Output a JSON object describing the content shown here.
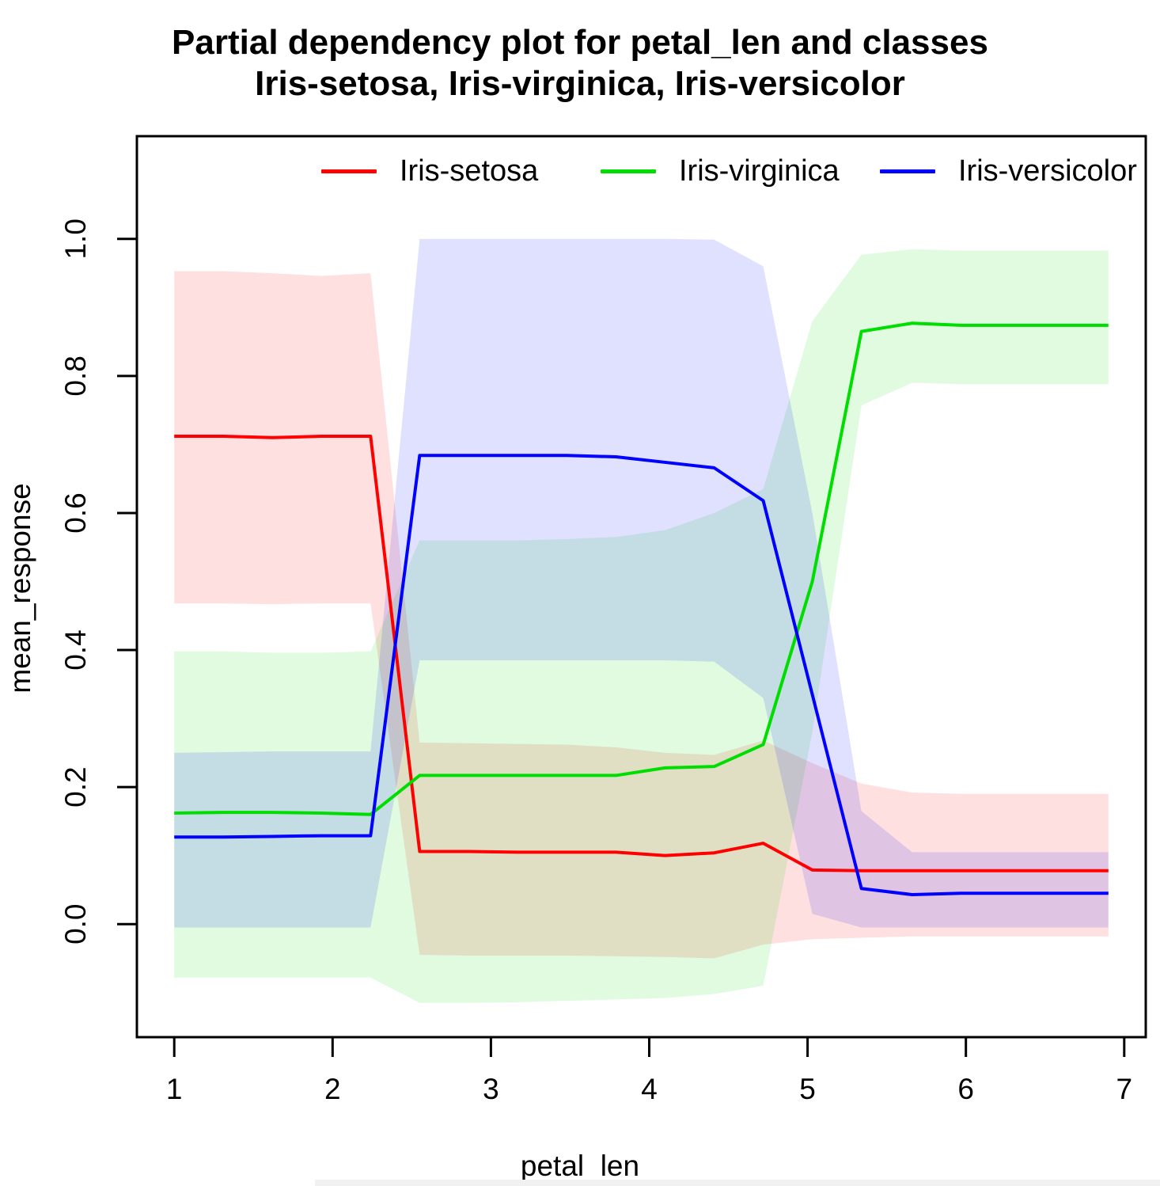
{
  "title": {
    "line1": "Partial dependency plot for petal_len and classes",
    "line2": "Iris-setosa, Iris-virginica, Iris-versicolor"
  },
  "axes": {
    "x_label": "petal_len",
    "y_label": "mean_response",
    "x_tick_labels": [
      "1",
      "2",
      "3",
      "4",
      "5",
      "6",
      "7"
    ],
    "x_tick_values": [
      1,
      2,
      3,
      4,
      5,
      6,
      7
    ],
    "y_tick_labels": [
      "0.0",
      "0.2",
      "0.4",
      "0.6",
      "0.8",
      "1.0"
    ],
    "y_tick_values": [
      0.0,
      0.2,
      0.4,
      0.6,
      0.8,
      1.0
    ],
    "x_range": [
      0.764,
      7.136
    ],
    "y_range": [
      -0.165,
      1.15
    ]
  },
  "chart_data": {
    "type": "line",
    "title": "Partial dependency plot for petal_len and classes Iris-setosa, Iris-virginica, Iris-versicolor",
    "xlabel": "petal_len",
    "ylabel": "mean_response",
    "grid": false,
    "legend_position": "top-inside",
    "band_alpha": 0.12,
    "x": [
      1.0,
      1.31,
      1.62,
      1.93,
      2.24,
      2.55,
      2.86,
      3.17,
      3.48,
      3.79,
      4.1,
      4.41,
      4.72,
      5.03,
      5.34,
      5.66,
      5.97,
      6.28,
      6.59,
      6.9
    ],
    "series": [
      {
        "name": "Iris-setosa",
        "color": "#ff0000",
        "mean": [
          0.712,
          0.712,
          0.71,
          0.712,
          0.712,
          0.106,
          0.106,
          0.105,
          0.105,
          0.105,
          0.1,
          0.104,
          0.118,
          0.079,
          0.078,
          0.078,
          0.078,
          0.078,
          0.078,
          0.078
        ],
        "lower": [
          0.468,
          0.468,
          0.467,
          0.468,
          0.468,
          -0.045,
          -0.046,
          -0.046,
          -0.046,
          -0.047,
          -0.048,
          -0.05,
          -0.03,
          -0.022,
          -0.02,
          -0.018,
          -0.018,
          -0.018,
          -0.018,
          -0.018
        ],
        "upper": [
          0.953,
          0.953,
          0.95,
          0.946,
          0.95,
          0.265,
          0.264,
          0.263,
          0.262,
          0.258,
          0.25,
          0.247,
          0.268,
          0.235,
          0.205,
          0.192,
          0.19,
          0.19,
          0.19,
          0.19
        ]
      },
      {
        "name": "Iris-virginica",
        "color": "#00dd00",
        "mean": [
          0.162,
          0.163,
          0.163,
          0.162,
          0.16,
          0.217,
          0.217,
          0.217,
          0.217,
          0.217,
          0.228,
          0.23,
          0.262,
          0.5,
          0.865,
          0.877,
          0.874,
          0.874,
          0.874,
          0.874
        ],
        "lower": [
          -0.078,
          -0.078,
          -0.078,
          -0.078,
          -0.078,
          -0.115,
          -0.115,
          -0.114,
          -0.112,
          -0.11,
          -0.108,
          -0.102,
          -0.09,
          0.28,
          0.757,
          0.79,
          0.788,
          0.788,
          0.788,
          0.788
        ],
        "upper": [
          0.398,
          0.398,
          0.396,
          0.396,
          0.398,
          0.56,
          0.56,
          0.56,
          0.562,
          0.565,
          0.575,
          0.6,
          0.635,
          0.88,
          0.977,
          0.985,
          0.983,
          0.983,
          0.983,
          0.983
        ]
      },
      {
        "name": "Iris-versicolor",
        "color": "#0000ff",
        "mean": [
          0.127,
          0.127,
          0.128,
          0.129,
          0.129,
          0.684,
          0.684,
          0.684,
          0.684,
          0.682,
          0.674,
          0.666,
          0.618,
          0.335,
          0.052,
          0.043,
          0.045,
          0.045,
          0.045,
          0.045
        ],
        "lower": [
          -0.005,
          -0.005,
          -0.005,
          -0.005,
          -0.005,
          0.385,
          0.385,
          0.385,
          0.385,
          0.385,
          0.385,
          0.383,
          0.33,
          0.015,
          -0.005,
          -0.005,
          -0.005,
          -0.005,
          -0.005,
          -0.005
        ],
        "upper": [
          0.25,
          0.251,
          0.252,
          0.252,
          0.252,
          1.0,
          1.0,
          1.0,
          1.0,
          1.0,
          1.0,
          0.999,
          0.96,
          0.6,
          0.165,
          0.105,
          0.105,
          0.105,
          0.105,
          0.105
        ]
      }
    ]
  }
}
